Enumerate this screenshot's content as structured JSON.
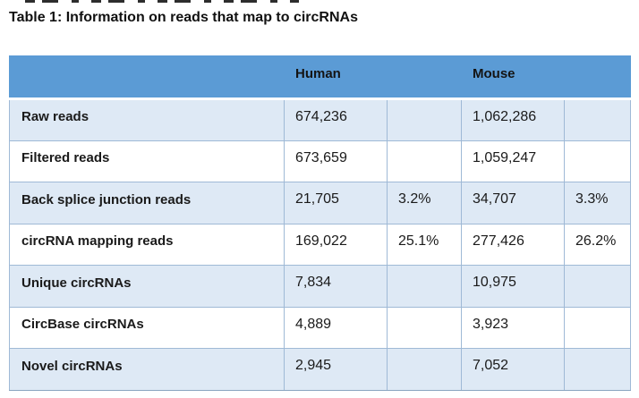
{
  "title": "Table 1: Information on reads that map to circRNAs",
  "table": {
    "header": {
      "label": "",
      "human": "Human",
      "human_pct": "",
      "mouse": "Mouse",
      "mouse_pct": ""
    },
    "rows": [
      {
        "label": "Raw reads",
        "human_value": "674,236",
        "human_pct": "",
        "mouse_value": "1,062,286",
        "mouse_pct": ""
      },
      {
        "label": "Filtered reads",
        "human_value": "673,659",
        "human_pct": "",
        "mouse_value": "1,059,247",
        "mouse_pct": ""
      },
      {
        "label": "Back splice junction reads",
        "human_value": "21,705",
        "human_pct": "3.2%",
        "mouse_value": "34,707",
        "mouse_pct": "3.3%"
      },
      {
        "label": "circRNA mapping reads",
        "human_value": "169,022",
        "human_pct": "25.1%",
        "mouse_value": "277,426",
        "mouse_pct": "26.2%"
      },
      {
        "label": "Unique circRNAs",
        "human_value": "7,834",
        "human_pct": "",
        "mouse_value": "10,975",
        "mouse_pct": ""
      },
      {
        "label": "CircBase circRNAs",
        "human_value": "4,889",
        "human_pct": "",
        "mouse_value": "3,923",
        "mouse_pct": ""
      },
      {
        "label": "Novel circRNAs",
        "human_value": "2,945",
        "human_pct": "",
        "mouse_value": "7,052",
        "mouse_pct": ""
      }
    ]
  },
  "colors": {
    "header_bg": "#5B9BD5",
    "band_bg": "#DEE9F5",
    "border": "#9FB9D6",
    "text": "#1A1A1A"
  }
}
